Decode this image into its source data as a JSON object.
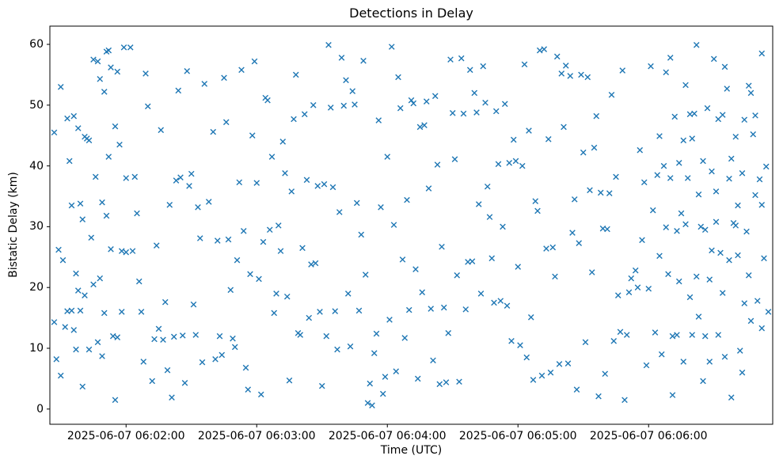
{
  "chart_data": {
    "type": "scatter",
    "title": "Detections in Delay",
    "xlabel": "Time (UTC)",
    "ylabel": "Bistatic Delay (km)",
    "marker": "x",
    "marker_color": "#1f77b4",
    "x_unit": "seconds relative to 2025-06-07 06:02:00 UTC",
    "xlim": [
      -35,
      297
    ],
    "ylim": [
      -2.5,
      63
    ],
    "x_ticks": [
      0,
      60,
      120,
      180,
      240
    ],
    "x_tick_labels": [
      "2025-06-07 06:02:00",
      "2025-06-07 06:03:00",
      "2025-06-07 06:04:00",
      "2025-06-07 06:05:00",
      "2025-06-07 06:06:00"
    ],
    "y_ticks": [
      0,
      10,
      20,
      30,
      40,
      50,
      60
    ],
    "grid": false,
    "legend": false,
    "points": [
      [
        -33,
        45.5
      ],
      [
        -33,
        14.3
      ],
      [
        -32,
        8.2
      ],
      [
        -31,
        26.2
      ],
      [
        -30,
        53.0
      ],
      [
        -30,
        5.5
      ],
      [
        -29,
        24.5
      ],
      [
        -28,
        13.5
      ],
      [
        -27,
        16.1
      ],
      [
        -27,
        47.8
      ],
      [
        -26,
        40.8
      ],
      [
        -25,
        33.5
      ],
      [
        -25,
        16.2
      ],
      [
        -24,
        48.2
      ],
      [
        -24,
        13.0
      ],
      [
        -23,
        22.3
      ],
      [
        -23,
        9.8
      ],
      [
        -22,
        46.2
      ],
      [
        -22,
        19.5
      ],
      [
        -21,
        33.8
      ],
      [
        -21,
        16.2
      ],
      [
        -20,
        31.2
      ],
      [
        -20,
        3.7
      ],
      [
        -19,
        44.8
      ],
      [
        -19,
        18.7
      ],
      [
        -18,
        44.5
      ],
      [
        -17,
        44.2
      ],
      [
        -17,
        9.8
      ],
      [
        -16,
        28.2
      ],
      [
        -15,
        57.5
      ],
      [
        -15,
        20.5
      ],
      [
        -14,
        38.2
      ],
      [
        -13,
        57.2
      ],
      [
        -13,
        11.0
      ],
      [
        -12,
        54.3
      ],
      [
        -12,
        21.5
      ],
      [
        -11,
        34.0
      ],
      [
        -11,
        8.7
      ],
      [
        -10,
        52.2
      ],
      [
        -10,
        15.8
      ],
      [
        -9,
        58.8
      ],
      [
        -9,
        31.8
      ],
      [
        -8,
        59.0
      ],
      [
        -8,
        41.5
      ],
      [
        -7,
        56.2
      ],
      [
        -7,
        26.3
      ],
      [
        -6,
        12.0
      ],
      [
        -5,
        46.5
      ],
      [
        -5,
        1.5
      ],
      [
        -4,
        55.5
      ],
      [
        -4,
        11.8
      ],
      [
        -3,
        43.5
      ],
      [
        -2,
        26.0
      ],
      [
        -2,
        16.0
      ],
      [
        -1,
        59.5
      ],
      [
        0,
        38.0
      ],
      [
        0,
        25.8
      ],
      [
        2,
        59.5
      ],
      [
        3,
        26.0
      ],
      [
        4,
        38.2
      ],
      [
        5,
        32.2
      ],
      [
        6,
        21.0
      ],
      [
        7,
        16.0
      ],
      [
        8,
        7.8
      ],
      [
        9,
        55.2
      ],
      [
        10,
        49.8
      ],
      [
        12,
        4.6
      ],
      [
        13,
        11.5
      ],
      [
        14,
        26.9
      ],
      [
        15,
        13.2
      ],
      [
        16,
        45.9
      ],
      [
        17,
        11.4
      ],
      [
        18,
        17.6
      ],
      [
        19,
        6.4
      ],
      [
        20,
        33.6
      ],
      [
        21,
        1.9
      ],
      [
        22,
        11.9
      ],
      [
        23,
        37.6
      ],
      [
        24,
        52.4
      ],
      [
        25,
        38.1
      ],
      [
        26,
        12.1
      ],
      [
        27,
        4.3
      ],
      [
        28,
        55.6
      ],
      [
        29,
        36.7
      ],
      [
        30,
        38.7
      ],
      [
        31,
        17.2
      ],
      [
        32,
        12.2
      ],
      [
        33,
        33.2
      ],
      [
        34,
        28.1
      ],
      [
        35,
        7.7
      ],
      [
        36,
        53.5
      ],
      [
        38,
        34.1
      ],
      [
        40,
        45.6
      ],
      [
        41,
        8.2
      ],
      [
        42,
        27.7
      ],
      [
        43,
        12.0
      ],
      [
        44,
        8.9
      ],
      [
        45,
        54.5
      ],
      [
        46,
        47.2
      ],
      [
        47,
        27.9
      ],
      [
        48,
        19.6
      ],
      [
        49,
        11.6
      ],
      [
        50,
        10.2
      ],
      [
        51,
        24.5
      ],
      [
        52,
        37.3
      ],
      [
        53,
        55.8
      ],
      [
        54,
        29.3
      ],
      [
        55,
        6.8
      ],
      [
        56,
        3.2
      ],
      [
        57,
        22.2
      ],
      [
        58,
        45.0
      ],
      [
        59,
        57.2
      ],
      [
        60,
        37.2
      ],
      [
        61,
        21.4
      ],
      [
        62,
        2.4
      ],
      [
        63,
        27.5
      ],
      [
        64,
        51.2
      ],
      [
        65,
        50.8
      ],
      [
        66,
        29.5
      ],
      [
        67,
        41.5
      ],
      [
        68,
        15.8
      ],
      [
        69,
        19.0
      ],
      [
        70,
        30.2
      ],
      [
        71,
        26.0
      ],
      [
        72,
        44.0
      ],
      [
        73,
        38.8
      ],
      [
        74,
        18.5
      ],
      [
        75,
        4.7
      ],
      [
        76,
        35.8
      ],
      [
        77,
        47.7
      ],
      [
        78,
        55.0
      ],
      [
        79,
        12.5
      ],
      [
        80,
        12.2
      ],
      [
        81,
        26.5
      ],
      [
        82,
        48.5
      ],
      [
        83,
        37.7
      ],
      [
        84,
        15.0
      ],
      [
        85,
        23.8
      ],
      [
        86,
        50.0
      ],
      [
        87,
        24.0
      ],
      [
        88,
        36.7
      ],
      [
        89,
        16.0
      ],
      [
        90,
        3.8
      ],
      [
        91,
        37.0
      ],
      [
        92,
        12.0
      ],
      [
        93,
        59.9
      ],
      [
        94,
        49.6
      ],
      [
        95,
        36.5
      ],
      [
        96,
        16.1
      ],
      [
        97,
        9.8
      ],
      [
        98,
        32.4
      ],
      [
        99,
        57.8
      ],
      [
        100,
        49.9
      ],
      [
        101,
        54.1
      ],
      [
        102,
        19.0
      ],
      [
        103,
        10.3
      ],
      [
        104,
        52.3
      ],
      [
        105,
        50.1
      ],
      [
        106,
        33.9
      ],
      [
        107,
        16.2
      ],
      [
        108,
        28.7
      ],
      [
        109,
        57.3
      ],
      [
        110,
        22.1
      ],
      [
        111,
        1.0
      ],
      [
        112,
        4.2
      ],
      [
        113,
        0.6
      ],
      [
        114,
        9.2
      ],
      [
        115,
        12.4
      ],
      [
        116,
        47.5
      ],
      [
        117,
        33.2
      ],
      [
        118,
        2.5
      ],
      [
        119,
        5.3
      ],
      [
        120,
        41.5
      ],
      [
        121,
        14.7
      ],
      [
        122,
        59.6
      ],
      [
        123,
        30.3
      ],
      [
        124,
        6.2
      ],
      [
        125,
        54.6
      ],
      [
        126,
        49.5
      ],
      [
        127,
        24.6
      ],
      [
        128,
        11.7
      ],
      [
        129,
        34.4
      ],
      [
        130,
        16.3
      ],
      [
        131,
        50.8
      ],
      [
        132,
        50.3
      ],
      [
        133,
        23.0
      ],
      [
        134,
        5.0
      ],
      [
        135,
        46.4
      ],
      [
        136,
        19.2
      ],
      [
        137,
        46.7
      ],
      [
        138,
        50.6
      ],
      [
        139,
        36.3
      ],
      [
        140,
        16.5
      ],
      [
        141,
        8.0
      ],
      [
        142,
        51.5
      ],
      [
        143,
        40.2
      ],
      [
        144,
        4.1
      ],
      [
        145,
        26.7
      ],
      [
        146,
        16.7
      ],
      [
        147,
        4.4
      ],
      [
        148,
        12.5
      ],
      [
        149,
        57.5
      ],
      [
        150,
        48.7
      ],
      [
        151,
        41.1
      ],
      [
        152,
        22.0
      ],
      [
        153,
        4.5
      ],
      [
        154,
        57.7
      ],
      [
        155,
        48.6
      ],
      [
        156,
        16.4
      ],
      [
        157,
        24.2
      ],
      [
        158,
        55.8
      ],
      [
        159,
        24.3
      ],
      [
        160,
        52.0
      ],
      [
        161,
        48.8
      ],
      [
        162,
        33.7
      ],
      [
        163,
        19.0
      ],
      [
        164,
        56.4
      ],
      [
        165,
        50.4
      ],
      [
        166,
        36.6
      ],
      [
        167,
        31.6
      ],
      [
        168,
        24.8
      ],
      [
        169,
        17.5
      ],
      [
        170,
        49.0
      ],
      [
        171,
        40.3
      ],
      [
        172,
        17.8
      ],
      [
        173,
        30.0
      ],
      [
        174,
        50.2
      ],
      [
        175,
        17.0
      ],
      [
        176,
        40.5
      ],
      [
        177,
        11.2
      ],
      [
        178,
        44.3
      ],
      [
        179,
        40.8
      ],
      [
        180,
        23.4
      ],
      [
        181,
        10.5
      ],
      [
        182,
        40.0
      ],
      [
        183,
        56.7
      ],
      [
        184,
        8.5
      ],
      [
        185,
        45.8
      ],
      [
        186,
        15.1
      ],
      [
        187,
        4.8
      ],
      [
        188,
        34.2
      ],
      [
        189,
        32.6
      ],
      [
        190,
        59.0
      ],
      [
        191,
        5.5
      ],
      [
        192,
        59.2
      ],
      [
        193,
        26.4
      ],
      [
        194,
        44.4
      ],
      [
        195,
        6.0
      ],
      [
        196,
        26.6
      ],
      [
        197,
        21.8
      ],
      [
        198,
        58.0
      ],
      [
        199,
        7.4
      ],
      [
        200,
        55.2
      ],
      [
        201,
        46.4
      ],
      [
        202,
        56.5
      ],
      [
        203,
        7.5
      ],
      [
        204,
        54.8
      ],
      [
        205,
        29.0
      ],
      [
        206,
        34.5
      ],
      [
        207,
        3.2
      ],
      [
        208,
        27.3
      ],
      [
        209,
        55.0
      ],
      [
        210,
        42.2
      ],
      [
        211,
        11.0
      ],
      [
        212,
        54.6
      ],
      [
        213,
        36.0
      ],
      [
        214,
        22.5
      ],
      [
        215,
        43.0
      ],
      [
        216,
        48.2
      ],
      [
        217,
        2.1
      ],
      [
        218,
        35.6
      ],
      [
        219,
        29.7
      ],
      [
        220,
        5.8
      ],
      [
        221,
        29.6
      ],
      [
        222,
        35.5
      ],
      [
        223,
        51.7
      ],
      [
        224,
        11.2
      ],
      [
        225,
        38.2
      ],
      [
        226,
        18.7
      ],
      [
        227,
        12.7
      ],
      [
        228,
        55.7
      ],
      [
        229,
        1.5
      ],
      [
        230,
        12.2
      ],
      [
        231,
        19.2
      ],
      [
        232,
        21.5
      ],
      [
        234,
        22.8
      ],
      [
        235,
        20.0
      ],
      [
        236,
        42.6
      ],
      [
        237,
        27.8
      ],
      [
        238,
        37.3
      ],
      [
        239,
        7.2
      ],
      [
        240,
        19.8
      ],
      [
        241,
        56.4
      ],
      [
        242,
        32.7
      ],
      [
        243,
        12.6
      ],
      [
        244,
        38.5
      ],
      [
        245,
        25.2
      ],
      [
        246,
        9.0
      ],
      [
        247,
        40.0
      ],
      [
        248,
        55.4
      ],
      [
        249,
        22.2
      ],
      [
        250,
        38.0
      ],
      [
        251,
        2.3
      ],
      [
        252,
        48.1
      ],
      [
        253,
        29.3
      ],
      [
        254,
        40.5
      ],
      [
        255,
        32.2
      ],
      [
        256,
        7.8
      ],
      [
        257,
        53.3
      ],
      [
        258,
        38.0
      ],
      [
        259,
        18.4
      ],
      [
        260,
        12.2
      ],
      [
        261,
        48.6
      ],
      [
        262,
        59.9
      ],
      [
        263,
        15.2
      ],
      [
        264,
        30.0
      ],
      [
        265,
        4.6
      ],
      [
        266,
        29.5
      ],
      [
        267,
        49.5
      ],
      [
        268,
        21.3
      ],
      [
        269,
        39.1
      ],
      [
        270,
        57.6
      ],
      [
        271,
        30.8
      ],
      [
        272,
        12.2
      ],
      [
        273,
        25.7
      ],
      [
        274,
        19.1
      ],
      [
        275,
        8.6
      ],
      [
        276,
        52.7
      ],
      [
        277,
        37.9
      ],
      [
        278,
        1.9
      ],
      [
        279,
        30.6
      ],
      [
        280,
        44.8
      ],
      [
        281,
        25.3
      ],
      [
        282,
        9.6
      ],
      [
        283,
        38.8
      ],
      [
        284,
        17.4
      ],
      [
        285,
        29.2
      ],
      [
        286,
        53.2
      ],
      [
        287,
        52.0
      ],
      [
        288,
        45.2
      ],
      [
        289,
        35.2
      ],
      [
        290,
        17.8
      ],
      [
        291,
        37.8
      ],
      [
        292,
        13.3
      ],
      [
        292,
        58.5
      ],
      [
        293,
        24.8
      ],
      [
        294,
        39.9
      ],
      [
        295,
        16.0
      ],
      [
        250,
        57.8
      ],
      [
        253,
        12.2
      ],
      [
        256,
        44.2
      ],
      [
        259,
        48.5
      ],
      [
        262,
        21.8
      ],
      [
        265,
        40.8
      ],
      [
        268,
        7.8
      ],
      [
        271,
        35.8
      ],
      [
        274,
        48.4
      ],
      [
        277,
        24.5
      ],
      [
        280,
        30.2
      ],
      [
        283,
        6.0
      ],
      [
        286,
        22.0
      ],
      [
        289,
        48.3
      ],
      [
        292,
        33.6
      ],
      [
        287,
        14.5
      ],
      [
        245,
        44.9
      ],
      [
        248,
        29.9
      ],
      [
        251,
        12.0
      ],
      [
        254,
        21.0
      ],
      [
        257,
        30.4
      ],
      [
        260,
        44.5
      ],
      [
        263,
        35.3
      ],
      [
        266,
        12.0
      ],
      [
        269,
        26.1
      ],
      [
        272,
        47.7
      ],
      [
        275,
        56.3
      ],
      [
        278,
        41.2
      ],
      [
        281,
        33.5
      ],
      [
        284,
        47.6
      ]
    ]
  }
}
